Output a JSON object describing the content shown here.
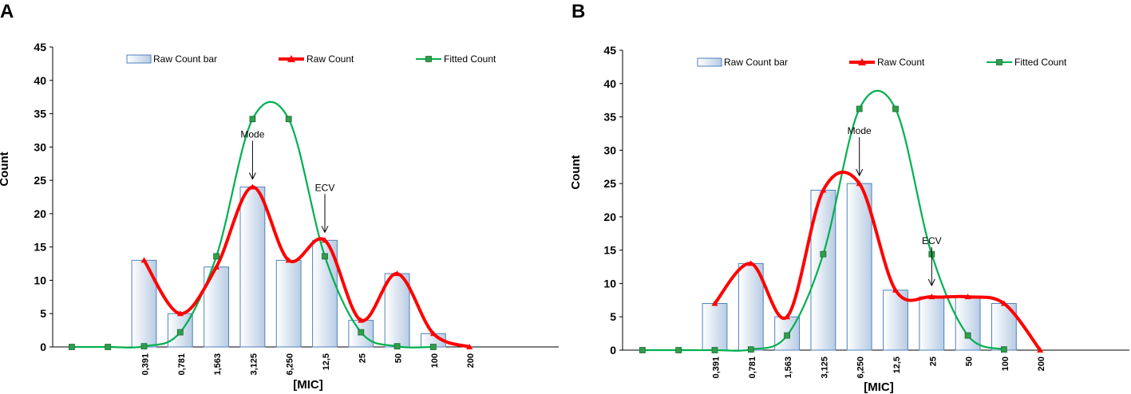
{
  "chart_data": [
    {
      "panel_label": "A",
      "type": "bar",
      "xlabel": "[MIC]",
      "ylabel": "Count",
      "ylim": [
        0,
        45
      ],
      "y_ticks": [
        0,
        5,
        10,
        15,
        20,
        25,
        30,
        35,
        40,
        45
      ],
      "categories": [
        "0,391",
        "0,781",
        "1,563",
        "3,125",
        "6,250",
        "12,5",
        "25",
        "50",
        "100",
        "200"
      ],
      "legend": [
        "Raw Count bar",
        "Raw Count",
        "Fitted Count"
      ],
      "series": [
        {
          "name": "Raw Count bar",
          "kind": "bar",
          "values": [
            13,
            5,
            12,
            24,
            13,
            16,
            4,
            11,
            2,
            0
          ]
        },
        {
          "name": "Raw Count",
          "kind": "smooth-line",
          "values": [
            13,
            5,
            12,
            24,
            13,
            16,
            4,
            11,
            2,
            0
          ]
        },
        {
          "name": "Fitted Count",
          "kind": "smooth-line",
          "points": [
            [
              -2,
              0
            ],
            [
              -1,
              0
            ],
            [
              0,
              0.1
            ],
            [
              1,
              2.2
            ],
            [
              2,
              13.6
            ],
            [
              3,
              34.2
            ],
            [
              4,
              34.2
            ],
            [
              5,
              13.6
            ],
            [
              6,
              2.2
            ],
            [
              7,
              0.1
            ],
            [
              8,
              0
            ]
          ]
        }
      ],
      "annotations": [
        {
          "text": "Mode",
          "target": [
            3,
            24
          ]
        },
        {
          "text": "ECV",
          "target": [
            5,
            16
          ]
        }
      ]
    },
    {
      "panel_label": "B",
      "type": "bar",
      "xlabel": "[MIC]",
      "ylabel": "Count",
      "ylim": [
        0,
        45
      ],
      "y_ticks": [
        0,
        5,
        10,
        15,
        20,
        25,
        30,
        35,
        40,
        45
      ],
      "categories": [
        "0,391",
        "0,781",
        "1,563",
        "3,125",
        "6,250",
        "12,5",
        "25",
        "50",
        "100",
        "200"
      ],
      "legend": [
        "Raw Count bar",
        "Raw Count",
        "Fitted Count"
      ],
      "series": [
        {
          "name": "Raw Count bar",
          "kind": "bar",
          "values": [
            7,
            13,
            5,
            24,
            25,
            9,
            8,
            8,
            7,
            0
          ]
        },
        {
          "name": "Raw Count",
          "kind": "smooth-line",
          "values": [
            7,
            13,
            5,
            24,
            25,
            9,
            8,
            8,
            7,
            0
          ]
        },
        {
          "name": "Fitted Count",
          "kind": "smooth-line",
          "points": [
            [
              -2,
              0
            ],
            [
              -1,
              0
            ],
            [
              0,
              0
            ],
            [
              1,
              0.1
            ],
            [
              2,
              2.2
            ],
            [
              3,
              14.4
            ],
            [
              4,
              36.2
            ],
            [
              5,
              36.2
            ],
            [
              6,
              14.4
            ],
            [
              7,
              2.2
            ],
            [
              8,
              0.1
            ]
          ]
        }
      ],
      "annotations": [
        {
          "text": "Mode",
          "target": [
            4,
            25
          ]
        },
        {
          "text": "ECV",
          "target": [
            6,
            8.5
          ]
        }
      ]
    }
  ],
  "colors": {
    "bar_fill_top": "#ffffff",
    "bar_fill_bottom": "#b8cce4",
    "bar_stroke": "#4f81bd",
    "raw_line": "#ff0000",
    "fitted_line": "#00b050",
    "fitted_marker": "#2e9e4a",
    "axis": "#000000"
  }
}
